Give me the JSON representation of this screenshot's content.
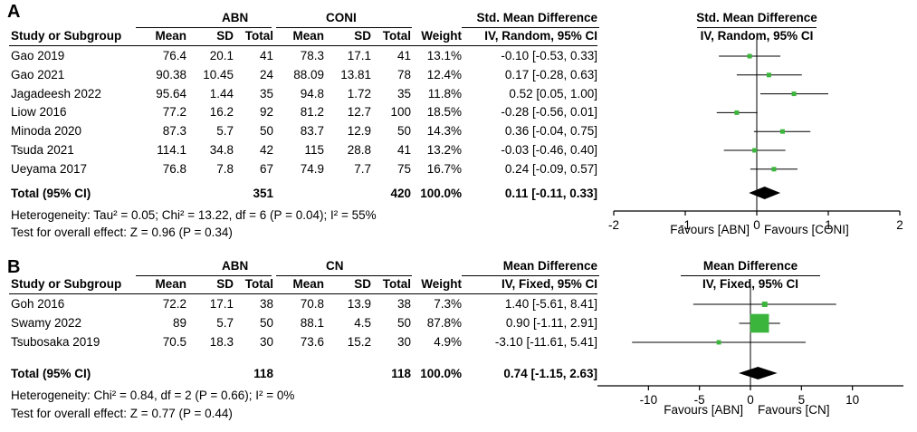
{
  "chart_data": [
    {
      "type": "forest",
      "panel_label": "A",
      "group1_label": "ABN",
      "group2_label": "CONI",
      "effect_header": "Std. Mean Difference",
      "effect_subheader": "IV, Random, 95% CI",
      "plot_header": "Std. Mean Difference",
      "plot_subheader": "IV, Random, 95% CI",
      "columns": [
        "Study or Subgroup",
        "Mean",
        "SD",
        "Total",
        "Mean",
        "SD",
        "Total",
        "Weight",
        "IV, Random, 95% CI"
      ],
      "studies": [
        {
          "name": "Gao 2019",
          "m1": "76.4",
          "sd1": "20.1",
          "n1": "41",
          "m2": "78.3",
          "sd2": "17.1",
          "n2": "41",
          "weight": "13.1%",
          "ci_text": "-0.10 [-0.53, 0.33]",
          "est": -0.1,
          "lo": -0.53,
          "hi": 0.33
        },
        {
          "name": "Gao 2021",
          "m1": "90.38",
          "sd1": "10.45",
          "n1": "24",
          "m2": "88.09",
          "sd2": "13.81",
          "n2": "78",
          "weight": "12.4%",
          "ci_text": "0.17 [-0.28, 0.63]",
          "est": 0.17,
          "lo": -0.28,
          "hi": 0.63
        },
        {
          "name": "Jagadeesh 2022",
          "m1": "95.64",
          "sd1": "1.44",
          "n1": "35",
          "m2": "94.8",
          "sd2": "1.72",
          "n2": "35",
          "weight": "11.8%",
          "ci_text": "0.52 [0.05, 1.00]",
          "est": 0.52,
          "lo": 0.05,
          "hi": 1.0
        },
        {
          "name": "Liow 2016",
          "m1": "77.2",
          "sd1": "16.2",
          "n1": "92",
          "m2": "81.2",
          "sd2": "12.7",
          "n2": "100",
          "weight": "18.5%",
          "ci_text": "-0.28 [-0.56, 0.01]",
          "est": -0.28,
          "lo": -0.56,
          "hi": 0.01
        },
        {
          "name": "Minoda 2020",
          "m1": "87.3",
          "sd1": "5.7",
          "n1": "50",
          "m2": "83.7",
          "sd2": "12.9",
          "n2": "50",
          "weight": "14.3%",
          "ci_text": "0.36 [-0.04, 0.75]",
          "est": 0.36,
          "lo": -0.04,
          "hi": 0.75
        },
        {
          "name": "Tsuda 2021",
          "m1": "114.1",
          "sd1": "34.8",
          "n1": "42",
          "m2": "115",
          "sd2": "28.8",
          "n2": "41",
          "weight": "13.2%",
          "ci_text": "-0.03 [-0.46, 0.40]",
          "est": -0.03,
          "lo": -0.46,
          "hi": 0.4
        },
        {
          "name": "Ueyama 2017",
          "m1": "76.8",
          "sd1": "7.8",
          "n1": "67",
          "m2": "74.9",
          "sd2": "7.7",
          "n2": "75",
          "weight": "16.7%",
          "ci_text": "0.24 [-0.09, 0.57]",
          "est": 0.24,
          "lo": -0.09,
          "hi": 0.57
        }
      ],
      "total": {
        "name": "Total (95% CI)",
        "n1": "351",
        "n2": "420",
        "weight": "100.0%",
        "ci_text": "0.11 [-0.11, 0.33]",
        "est": 0.11,
        "lo": -0.11,
        "hi": 0.33
      },
      "heterogeneity": "Heterogeneity: Tau² = 0.05; Chi² = 13.22, df = 6 (P = 0.04); I² = 55%",
      "overall_effect": "Test for overall effect: Z = 0.96 (P = 0.34)",
      "x_range": [
        -2,
        2
      ],
      "x_ticks": [
        "-2",
        "-1",
        "0",
        "1",
        "2"
      ],
      "favours_left": "Favours [ABN]",
      "favours_right": "Favours [CONI]"
    },
    {
      "type": "forest",
      "panel_label": "B",
      "group1_label": "ABN",
      "group2_label": "CN",
      "effect_header": "Mean Difference",
      "effect_subheader": "IV, Fixed, 95% CI",
      "plot_header": "Mean Difference",
      "plot_subheader": "IV, Fixed, 95% CI",
      "columns": [
        "Study or Subgroup",
        "Mean",
        "SD",
        "Total",
        "Mean",
        "SD",
        "Total",
        "Weight",
        "IV, Fixed, 95% CI"
      ],
      "studies": [
        {
          "name": "Goh 2016",
          "m1": "72.2",
          "sd1": "17.1",
          "n1": "38",
          "m2": "70.8",
          "sd2": "13.9",
          "n2": "38",
          "weight": "7.3%",
          "ci_text": "1.40 [-5.61, 8.41]",
          "est": 1.4,
          "lo": -5.61,
          "hi": 8.41
        },
        {
          "name": "Swamy 2022",
          "m1": "89",
          "sd1": "5.7",
          "n1": "50",
          "m2": "88.1",
          "sd2": "4.5",
          "n2": "50",
          "weight": "87.8%",
          "ci_text": "0.90 [-1.11, 2.91]",
          "est": 0.9,
          "lo": -1.11,
          "hi": 2.91
        },
        {
          "name": "Tsubosaka 2019",
          "m1": "70.5",
          "sd1": "18.3",
          "n1": "30",
          "m2": "73.6",
          "sd2": "15.2",
          "n2": "30",
          "weight": "4.9%",
          "ci_text": "-3.10 [-11.61, 5.41]",
          "est": -3.1,
          "lo": -11.61,
          "hi": 5.41
        }
      ],
      "total": {
        "name": "Total (95% CI)",
        "n1": "118",
        "n2": "118",
        "weight": "100.0%",
        "ci_text": "0.74 [-1.15, 2.63]",
        "est": 0.74,
        "lo": -1.15,
        "hi": 2.63
      },
      "heterogeneity": "Heterogeneity: Chi² = 0.84, df = 2 (P = 0.66); I² = 0%",
      "overall_effect": "Test for overall effect: Z = 0.77 (P = 0.44)",
      "x_range": [
        -15,
        15
      ],
      "x_ticks": [
        "-10",
        "-5",
        "0",
        "5",
        "10"
      ],
      "favours_left": "Favours [ABN]",
      "favours_right": "Favours [CN]"
    }
  ],
  "colors": {
    "marker": "#3cb53c",
    "diamond": "#000000",
    "line": "#000000"
  }
}
